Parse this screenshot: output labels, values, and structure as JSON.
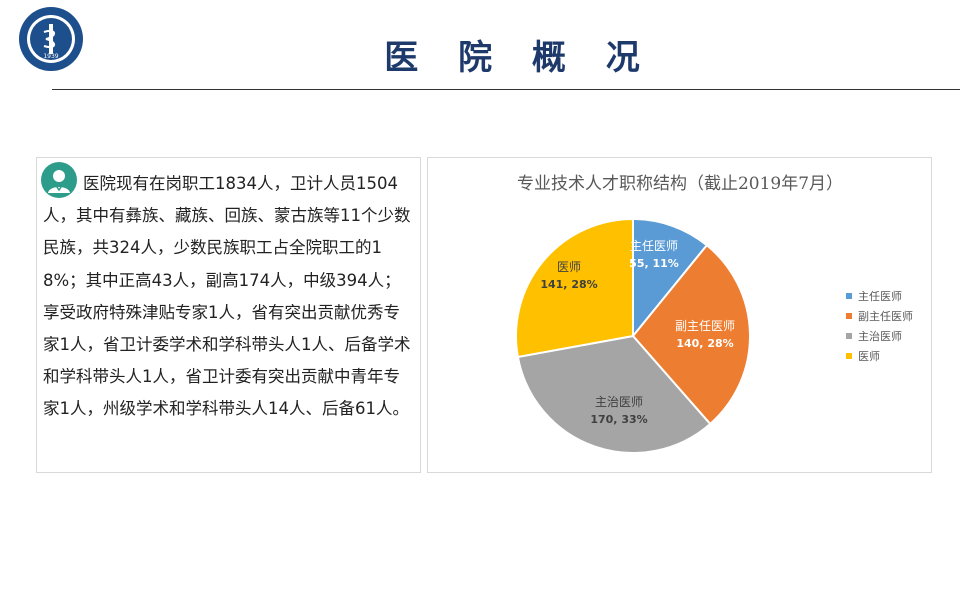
{
  "header": {
    "title": "医 院 概 况"
  },
  "logo": {
    "year": "1939"
  },
  "summary": {
    "text": "医院现有在岗职工1834人，卫计人员1504人，其中有彝族、藏族、回族、蒙古族等11个少数民族，共324人，少数民族职工占全院职工的18%；其中正高43人，副高174人，中级394人；享受政府特殊津贴专家1人，省有突出贡献优秀专家1人，省卫计委学术和学科带头人1人、后备学术和学科带头人1人，省卫计委有突出贡献中青年专家1人，州级学术和学科带头人14人、后备61人。"
  },
  "chart_data": {
    "type": "pie",
    "title": "专业技术人才职称结构（截止2019年7月）",
    "series": [
      {
        "name": "主任医师",
        "value": 55,
        "percent": "11%",
        "color": "#5b9bd5",
        "label_color": "#ffffff"
      },
      {
        "name": "副主任医师",
        "value": 140,
        "percent": "28%",
        "color": "#ed7d31",
        "label_color": "#ffffff"
      },
      {
        "name": "主治医师",
        "value": 170,
        "percent": "33%",
        "color": "#a5a5a5",
        "label_color": "#3f3f3f"
      },
      {
        "name": "医师",
        "value": 141,
        "percent": "28%",
        "color": "#ffc000",
        "label_color": "#3f3f3f"
      }
    ],
    "legend": [
      "主任医师",
      "副主任医师",
      "主治医师",
      "医师"
    ],
    "legend_position": "right"
  }
}
